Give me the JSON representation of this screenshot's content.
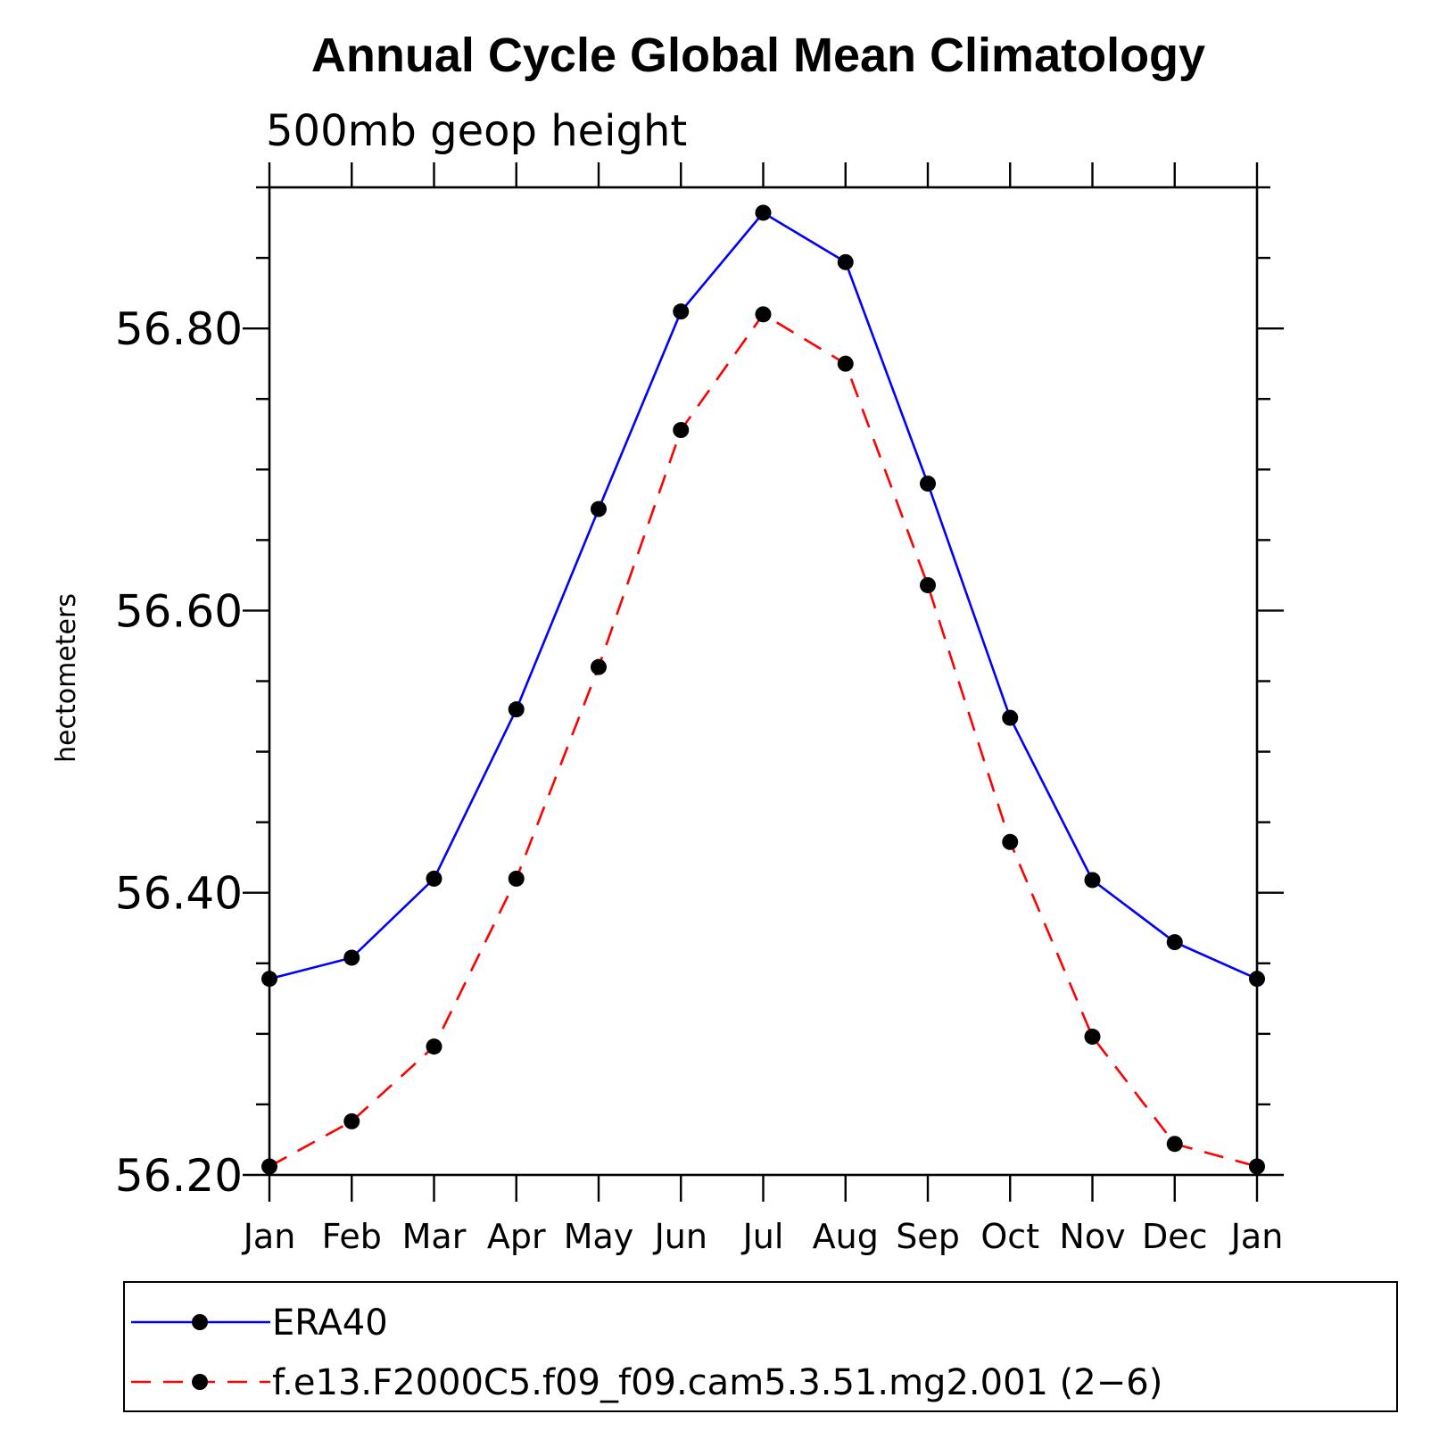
{
  "chart_data": {
    "type": "line",
    "title": "Annual Cycle Global Mean Climatology",
    "subtitle": "500mb geop height",
    "ylabel": "hectometers",
    "xlabel": "",
    "categories": [
      "Jan",
      "Feb",
      "Mar",
      "Apr",
      "May",
      "Jun",
      "Jul",
      "Aug",
      "Sep",
      "Oct",
      "Nov",
      "Dec",
      "Jan"
    ],
    "ylim": [
      56.2,
      56.9
    ],
    "yticks": [
      "56.20",
      "56.40",
      "56.60",
      "56.80"
    ],
    "grid": false,
    "legend_position": "bottom",
    "series": [
      {
        "name": "ERA40",
        "color": "#0000ff",
        "style": "solid",
        "values": [
          56.339,
          56.354,
          56.41,
          56.53,
          56.672,
          56.812,
          56.882,
          56.847,
          56.69,
          56.524,
          56.409,
          56.365,
          56.339
        ]
      },
      {
        "name": "f.e13.F2000C5.f09_f09.cam5.3.51.mg2.001 (2−6)",
        "color": "#ff0000",
        "style": "dashed",
        "values": [
          56.206,
          56.238,
          56.291,
          56.41,
          56.56,
          56.728,
          56.81,
          56.775,
          56.618,
          56.436,
          56.298,
          56.222,
          56.206
        ]
      }
    ]
  }
}
